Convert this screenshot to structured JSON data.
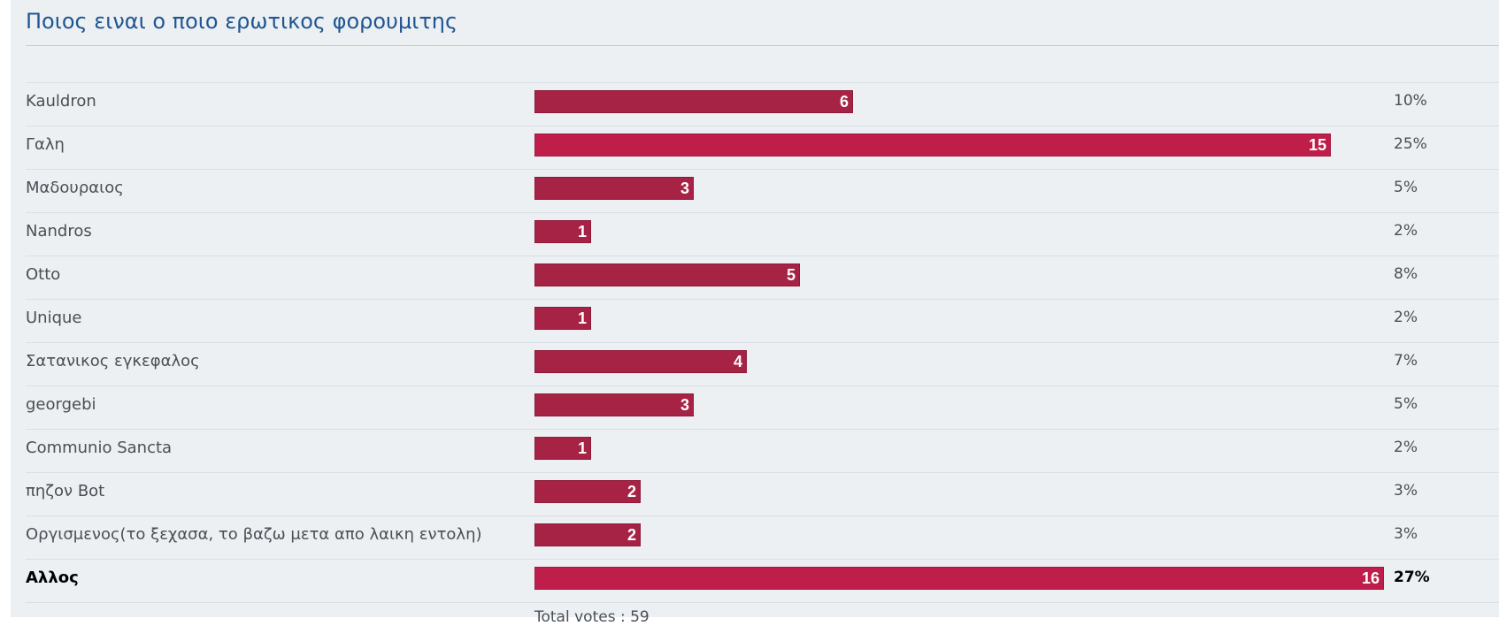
{
  "poll": {
    "title": "Ποιος ειναι ο ποιο ερωτικος φορουμιτης",
    "total_label": "Total votes : 59",
    "max_votes": 16,
    "options": [
      {
        "label": "Kauldron",
        "votes": 6,
        "votes_text": "6",
        "percent": "10%"
      },
      {
        "label": "Γαλη",
        "votes": 15,
        "votes_text": "15",
        "percent": "25%"
      },
      {
        "label": "Μαδουραιος",
        "votes": 3,
        "votes_text": "3",
        "percent": "5%"
      },
      {
        "label": "Nandros",
        "votes": 1,
        "votes_text": "1",
        "percent": "2%"
      },
      {
        "label": "Otto",
        "votes": 5,
        "votes_text": "5",
        "percent": "8%"
      },
      {
        "label": "Unique",
        "votes": 1,
        "votes_text": "1",
        "percent": "2%"
      },
      {
        "label": "Σατανικος εγκεφαλος",
        "votes": 4,
        "votes_text": "4",
        "percent": "7%"
      },
      {
        "label": "georgebi",
        "votes": 3,
        "votes_text": "3",
        "percent": "5%"
      },
      {
        "label": "Communio Sancta",
        "votes": 1,
        "votes_text": "1",
        "percent": "2%"
      },
      {
        "label": "πηζον Bot",
        "votes": 2,
        "votes_text": "2",
        "percent": "3%"
      },
      {
        "label": "Οργισμενος(το ξεχασα, το βαζω μετα απο λαικη εντολη)",
        "votes": 2,
        "votes_text": "2",
        "percent": "3%"
      },
      {
        "label": "Αλλος",
        "votes": 16,
        "votes_text": "16",
        "percent": "27%",
        "winner": true
      }
    ]
  },
  "colors": {
    "bar": "#a72345",
    "bar_alt": "#c01e4a",
    "title": "#1f5592"
  }
}
